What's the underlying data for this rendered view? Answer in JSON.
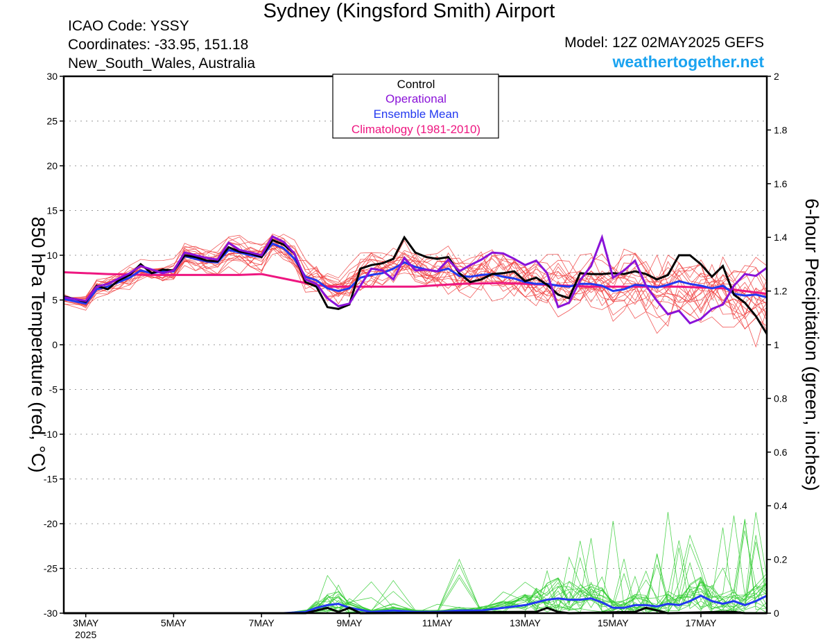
{
  "header": {
    "title": "Sydney (Kingsford Smith) Airport",
    "icao": "ICAO Code: YSSY",
    "coordinates": "Coordinates: -33.95, 151.18",
    "region": "New_South_Wales, Australia",
    "model": "Model: 12Z 02MAY2025 GEFS",
    "site": "weathertogether.net"
  },
  "colors": {
    "control": "#000000",
    "operational": "#8a12d8",
    "ensemble_mean": "#2238f0",
    "climatology": "#ee1680",
    "member_temp": "#f03c3c",
    "member_precip": "#32cd32",
    "grid": "#9a9a9a",
    "site_link": "#1aa3f0"
  },
  "chart_data": {
    "type": "line",
    "legend": {
      "placement": "top-center",
      "entries": [
        "Control",
        "Operational",
        "Ensemble Mean",
        "Climatology (1981-2010)"
      ]
    },
    "grid": "horizontal dotted",
    "x_axis": {
      "unit": "day of May 2025",
      "range": [
        2.5,
        18.5
      ],
      "ticks": [
        {
          "x": 3,
          "label": "3MAY"
        },
        {
          "x": 5,
          "label": "5MAY"
        },
        {
          "x": 7,
          "label": "7MAY"
        },
        {
          "x": 9,
          "label": "9MAY"
        },
        {
          "x": 11,
          "label": "11MAY"
        },
        {
          "x": 13,
          "label": "13MAY"
        },
        {
          "x": 15,
          "label": "15MAY"
        },
        {
          "x": 17,
          "label": "17MAY"
        }
      ],
      "year_label": "2025"
    },
    "y_left": {
      "label": "850 hPa Temperature (red, °C)",
      "range": [
        -30,
        30
      ],
      "ticks": [
        30,
        25,
        20,
        15,
        10,
        5,
        0,
        -5,
        -10,
        -15,
        -20,
        -25,
        -30
      ]
    },
    "y_right": {
      "label": "6-hour Precipitation (green, inches)",
      "range": [
        0,
        2
      ],
      "ticks": [
        "2",
        "1.8",
        "1.6",
        "1.4",
        "1.2",
        "1",
        "0.8",
        "0.6",
        "0.4",
        "0.2",
        "0"
      ]
    },
    "temperature": {
      "control": [
        [
          2.5,
          5.4
        ],
        [
          3,
          4.8
        ],
        [
          3.25,
          6.6
        ],
        [
          3.5,
          6.2
        ],
        [
          3.75,
          7.2
        ],
        [
          4,
          7.8
        ],
        [
          4.25,
          9.0
        ],
        [
          4.5,
          8.0
        ],
        [
          4.75,
          8.4
        ],
        [
          5,
          8.3
        ],
        [
          5.25,
          10.0
        ],
        [
          5.5,
          9.8
        ],
        [
          5.75,
          9.4
        ],
        [
          6,
          9.3
        ],
        [
          6.25,
          10.9
        ],
        [
          6.5,
          10.4
        ],
        [
          6.75,
          10.2
        ],
        [
          7,
          9.8
        ],
        [
          7.25,
          11.7
        ],
        [
          7.5,
          11.2
        ],
        [
          7.75,
          10.2
        ],
        [
          8,
          7.0
        ],
        [
          8.25,
          6.5
        ],
        [
          8.5,
          4.2
        ],
        [
          8.75,
          4.0
        ],
        [
          9,
          4.5
        ],
        [
          9.25,
          8.5
        ],
        [
          9.5,
          8.9
        ],
        [
          9.75,
          9.1
        ],
        [
          10,
          9.6
        ],
        [
          10.25,
          12.0
        ],
        [
          10.5,
          10.3
        ],
        [
          10.75,
          9.8
        ],
        [
          11,
          9.6
        ],
        [
          11.25,
          9.8
        ],
        [
          11.5,
          8.0
        ],
        [
          11.75,
          7.0
        ],
        [
          12,
          7.3
        ],
        [
          12.25,
          7.9
        ],
        [
          12.5,
          8.0
        ],
        [
          12.75,
          8.2
        ],
        [
          13,
          7.1
        ],
        [
          13.25,
          7.5
        ],
        [
          13.5,
          6.7
        ],
        [
          13.75,
          5.6
        ],
        [
          14,
          5.2
        ],
        [
          14.25,
          8.0
        ],
        [
          14.5,
          7.9
        ],
        [
          14.75,
          7.9
        ],
        [
          15,
          8.0
        ],
        [
          15.25,
          7.9
        ],
        [
          15.5,
          8.2
        ],
        [
          15.75,
          7.9
        ],
        [
          16,
          7.3
        ],
        [
          16.25,
          7.8
        ],
        [
          16.5,
          10.0
        ],
        [
          16.75,
          10.0
        ],
        [
          17,
          9.0
        ],
        [
          17.25,
          7.6
        ],
        [
          17.5,
          8.8
        ],
        [
          17.75,
          5.6
        ],
        [
          18,
          4.7
        ],
        [
          18.25,
          3.2
        ],
        [
          18.5,
          1.2
        ]
      ],
      "operational": [
        [
          2.5,
          5.3
        ],
        [
          3,
          4.9
        ],
        [
          3.25,
          6.5
        ],
        [
          3.5,
          6.8
        ],
        [
          3.75,
          7.4
        ],
        [
          4,
          8.0
        ],
        [
          4.25,
          8.8
        ],
        [
          4.5,
          8.4
        ],
        [
          4.75,
          8.0
        ],
        [
          5,
          8.3
        ],
        [
          5.25,
          10.3
        ],
        [
          5.5,
          10.0
        ],
        [
          5.75,
          9.7
        ],
        [
          6,
          9.5
        ],
        [
          6.25,
          11.4
        ],
        [
          6.5,
          10.6
        ],
        [
          6.75,
          10.3
        ],
        [
          7,
          10.0
        ],
        [
          7.25,
          12.1
        ],
        [
          7.5,
          11.5
        ],
        [
          7.75,
          10.2
        ],
        [
          8,
          7.3
        ],
        [
          8.25,
          6.8
        ],
        [
          8.5,
          5.2
        ],
        [
          8.75,
          4.3
        ],
        [
          9,
          4.6
        ],
        [
          9.25,
          6.6
        ],
        [
          9.5,
          8.5
        ],
        [
          9.75,
          8.3
        ],
        [
          10,
          7.3
        ],
        [
          10.25,
          9.7
        ],
        [
          10.5,
          8.3
        ],
        [
          10.75,
          8.4
        ],
        [
          11,
          8.2
        ],
        [
          11.25,
          9.5
        ],
        [
          11.5,
          8.2
        ],
        [
          11.75,
          8.9
        ],
        [
          12,
          9.5
        ],
        [
          12.25,
          10.3
        ],
        [
          12.5,
          10.2
        ],
        [
          12.75,
          9.6
        ],
        [
          13,
          8.9
        ],
        [
          13.25,
          9.4
        ],
        [
          13.5,
          8.0
        ],
        [
          13.75,
          4.2
        ],
        [
          14,
          4.7
        ],
        [
          14.25,
          7.2
        ],
        [
          14.5,
          8.8
        ],
        [
          14.75,
          12.0
        ],
        [
          15,
          7.5
        ],
        [
          15.25,
          8.3
        ],
        [
          15.5,
          9.4
        ],
        [
          15.75,
          6.6
        ],
        [
          16,
          4.9
        ],
        [
          16.25,
          3.4
        ],
        [
          16.5,
          3.8
        ],
        [
          16.75,
          2.4
        ],
        [
          17,
          2.9
        ],
        [
          17.25,
          4.0
        ],
        [
          17.5,
          4.5
        ],
        [
          17.75,
          6.6
        ],
        [
          18,
          7.9
        ],
        [
          18.25,
          7.7
        ],
        [
          18.5,
          8.6
        ]
      ],
      "ensemble_mean": [
        [
          2.5,
          5.1
        ],
        [
          3,
          4.6
        ],
        [
          3.25,
          6.2
        ],
        [
          3.5,
          6.5
        ],
        [
          3.75,
          7.0
        ],
        [
          4,
          7.5
        ],
        [
          4.25,
          8.3
        ],
        [
          4.5,
          8.0
        ],
        [
          4.75,
          8.2
        ],
        [
          5,
          8.2
        ],
        [
          5.25,
          9.9
        ],
        [
          5.5,
          9.6
        ],
        [
          5.75,
          9.3
        ],
        [
          6,
          9.2
        ],
        [
          6.25,
          10.6
        ],
        [
          6.5,
          10.3
        ],
        [
          6.75,
          10.0
        ],
        [
          7,
          9.8
        ],
        [
          7.25,
          11.3
        ],
        [
          7.5,
          10.8
        ],
        [
          7.75,
          9.6
        ],
        [
          8,
          7.6
        ],
        [
          8.25,
          7.2
        ],
        [
          8.5,
          6.3
        ],
        [
          8.75,
          6.0
        ],
        [
          9,
          6.3
        ],
        [
          9.25,
          7.5
        ],
        [
          9.5,
          7.8
        ],
        [
          9.75,
          8.0
        ],
        [
          10,
          8.5
        ],
        [
          10.25,
          9.2
        ],
        [
          10.5,
          8.7
        ],
        [
          10.75,
          8.4
        ],
        [
          11,
          8.2
        ],
        [
          11.25,
          8.5
        ],
        [
          11.5,
          7.7
        ],
        [
          11.75,
          7.6
        ],
        [
          12,
          7.8
        ],
        [
          12.25,
          7.9
        ],
        [
          12.5,
          7.6
        ],
        [
          12.75,
          7.4
        ],
        [
          13,
          7.0
        ],
        [
          13.25,
          6.8
        ],
        [
          13.5,
          6.8
        ],
        [
          13.75,
          6.6
        ],
        [
          14,
          6.5
        ],
        [
          14.25,
          6.8
        ],
        [
          14.5,
          6.8
        ],
        [
          14.75,
          6.6
        ],
        [
          15,
          6.0
        ],
        [
          15.25,
          6.2
        ],
        [
          15.5,
          6.7
        ],
        [
          15.75,
          6.6
        ],
        [
          16,
          6.4
        ],
        [
          16.25,
          6.7
        ],
        [
          16.5,
          7.1
        ],
        [
          16.75,
          6.8
        ],
        [
          17,
          6.6
        ],
        [
          17.25,
          6.3
        ],
        [
          17.5,
          6.6
        ],
        [
          17.75,
          5.7
        ],
        [
          18,
          5.5
        ],
        [
          18.25,
          5.6
        ],
        [
          18.5,
          5.3
        ]
      ],
      "climatology": [
        [
          2.5,
          8.1
        ],
        [
          3.5,
          7.9
        ],
        [
          4.5,
          7.8
        ],
        [
          5.5,
          7.8
        ],
        [
          6.5,
          7.8
        ],
        [
          7,
          7.9
        ],
        [
          7.5,
          7.4
        ],
        [
          8,
          6.9
        ],
        [
          8.5,
          6.5
        ],
        [
          9.5,
          6.5
        ],
        [
          10.5,
          6.5
        ],
        [
          11.5,
          6.8
        ],
        [
          12.5,
          6.9
        ],
        [
          13.5,
          6.7
        ],
        [
          14.5,
          6.5
        ],
        [
          15.5,
          6.5
        ],
        [
          16.5,
          6.5
        ],
        [
          17.5,
          6.3
        ],
        [
          18.5,
          5.7
        ]
      ],
      "members_note": "20 ensemble members drawn as thin red lines"
    },
    "precipitation": {
      "control": [
        [
          2.5,
          0
        ],
        [
          8,
          0
        ],
        [
          8.5,
          0.02
        ],
        [
          8.75,
          0.005
        ],
        [
          9,
          0.02
        ],
        [
          9.25,
          0
        ],
        [
          13.25,
          0.005
        ],
        [
          13.5,
          0.02
        ],
        [
          13.75,
          0.005
        ],
        [
          14,
          0
        ],
        [
          15.5,
          0.005
        ],
        [
          15.75,
          0.02
        ],
        [
          16,
          0.01
        ],
        [
          16.25,
          0
        ],
        [
          17.5,
          0.005
        ],
        [
          17.75,
          0.005
        ],
        [
          18,
          0
        ],
        [
          18.5,
          0
        ]
      ],
      "ensemble_mean": [
        [
          2.5,
          0
        ],
        [
          7.5,
          0
        ],
        [
          8,
          0.005
        ],
        [
          8.25,
          0.02
        ],
        [
          8.5,
          0.03
        ],
        [
          8.75,
          0.035
        ],
        [
          9,
          0.02
        ],
        [
          9.5,
          0.005
        ],
        [
          10,
          0.01
        ],
        [
          10.5,
          0.005
        ],
        [
          11,
          0.005
        ],
        [
          11.5,
          0.01
        ],
        [
          12,
          0.01
        ],
        [
          12.5,
          0.02
        ],
        [
          13,
          0.03
        ],
        [
          13.25,
          0.04
        ],
        [
          13.5,
          0.05
        ],
        [
          13.75,
          0.055
        ],
        [
          14,
          0.05
        ],
        [
          14.25,
          0.05
        ],
        [
          14.5,
          0.055
        ],
        [
          14.75,
          0.04
        ],
        [
          15,
          0.02
        ],
        [
          15.25,
          0.02
        ],
        [
          15.5,
          0.03
        ],
        [
          15.75,
          0.03
        ],
        [
          16,
          0.025
        ],
        [
          16.25,
          0.035
        ],
        [
          16.5,
          0.03
        ],
        [
          16.75,
          0.045
        ],
        [
          17,
          0.065
        ],
        [
          17.25,
          0.045
        ],
        [
          17.5,
          0.035
        ],
        [
          17.75,
          0.045
        ],
        [
          18,
          0.03
        ],
        [
          18.25,
          0.045
        ],
        [
          18.5,
          0.065
        ]
      ],
      "members_note": "20 ensemble members drawn as thin green lines"
    }
  }
}
